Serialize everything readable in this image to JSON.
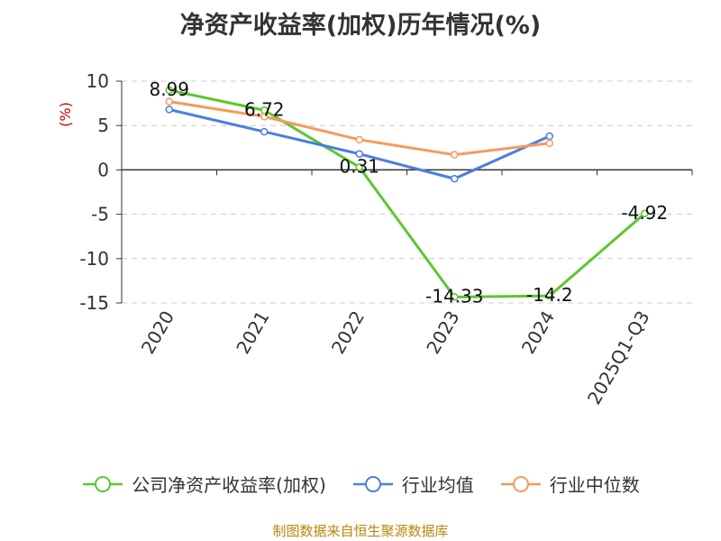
{
  "chart_data": {
    "type": "line",
    "title": "净资产收益率(加权)历年情况(%)",
    "ylabel": "(%)",
    "xlabel": "",
    "categories": [
      "2020",
      "2021",
      "2022",
      "2023",
      "2024",
      "2025Q1-Q3"
    ],
    "ylim": [
      -15,
      10
    ],
    "yticks": [
      10,
      5,
      0,
      -5,
      -10,
      -15
    ],
    "grid": true,
    "legend_position": "bottom",
    "series": [
      {
        "name": "公司净资产收益率(加权)",
        "color": "#5cc72f",
        "values": [
          8.99,
          6.72,
          0.31,
          -14.33,
          -14.2,
          -4.92
        ],
        "labels": [
          "8.99",
          "6.72",
          "0.31",
          "-14.33",
          "-14.2",
          "-4.92"
        ]
      },
      {
        "name": "行业均值",
        "color": "#4a7fe0",
        "values": [
          6.8,
          4.3,
          1.8,
          -1.0,
          3.8,
          null
        ]
      },
      {
        "name": "行业中位数",
        "color": "#f59a5e",
        "values": [
          7.7,
          6.0,
          3.4,
          1.7,
          3.0,
          null
        ]
      }
    ]
  },
  "source": "制图数据来自恒生聚源数据库"
}
